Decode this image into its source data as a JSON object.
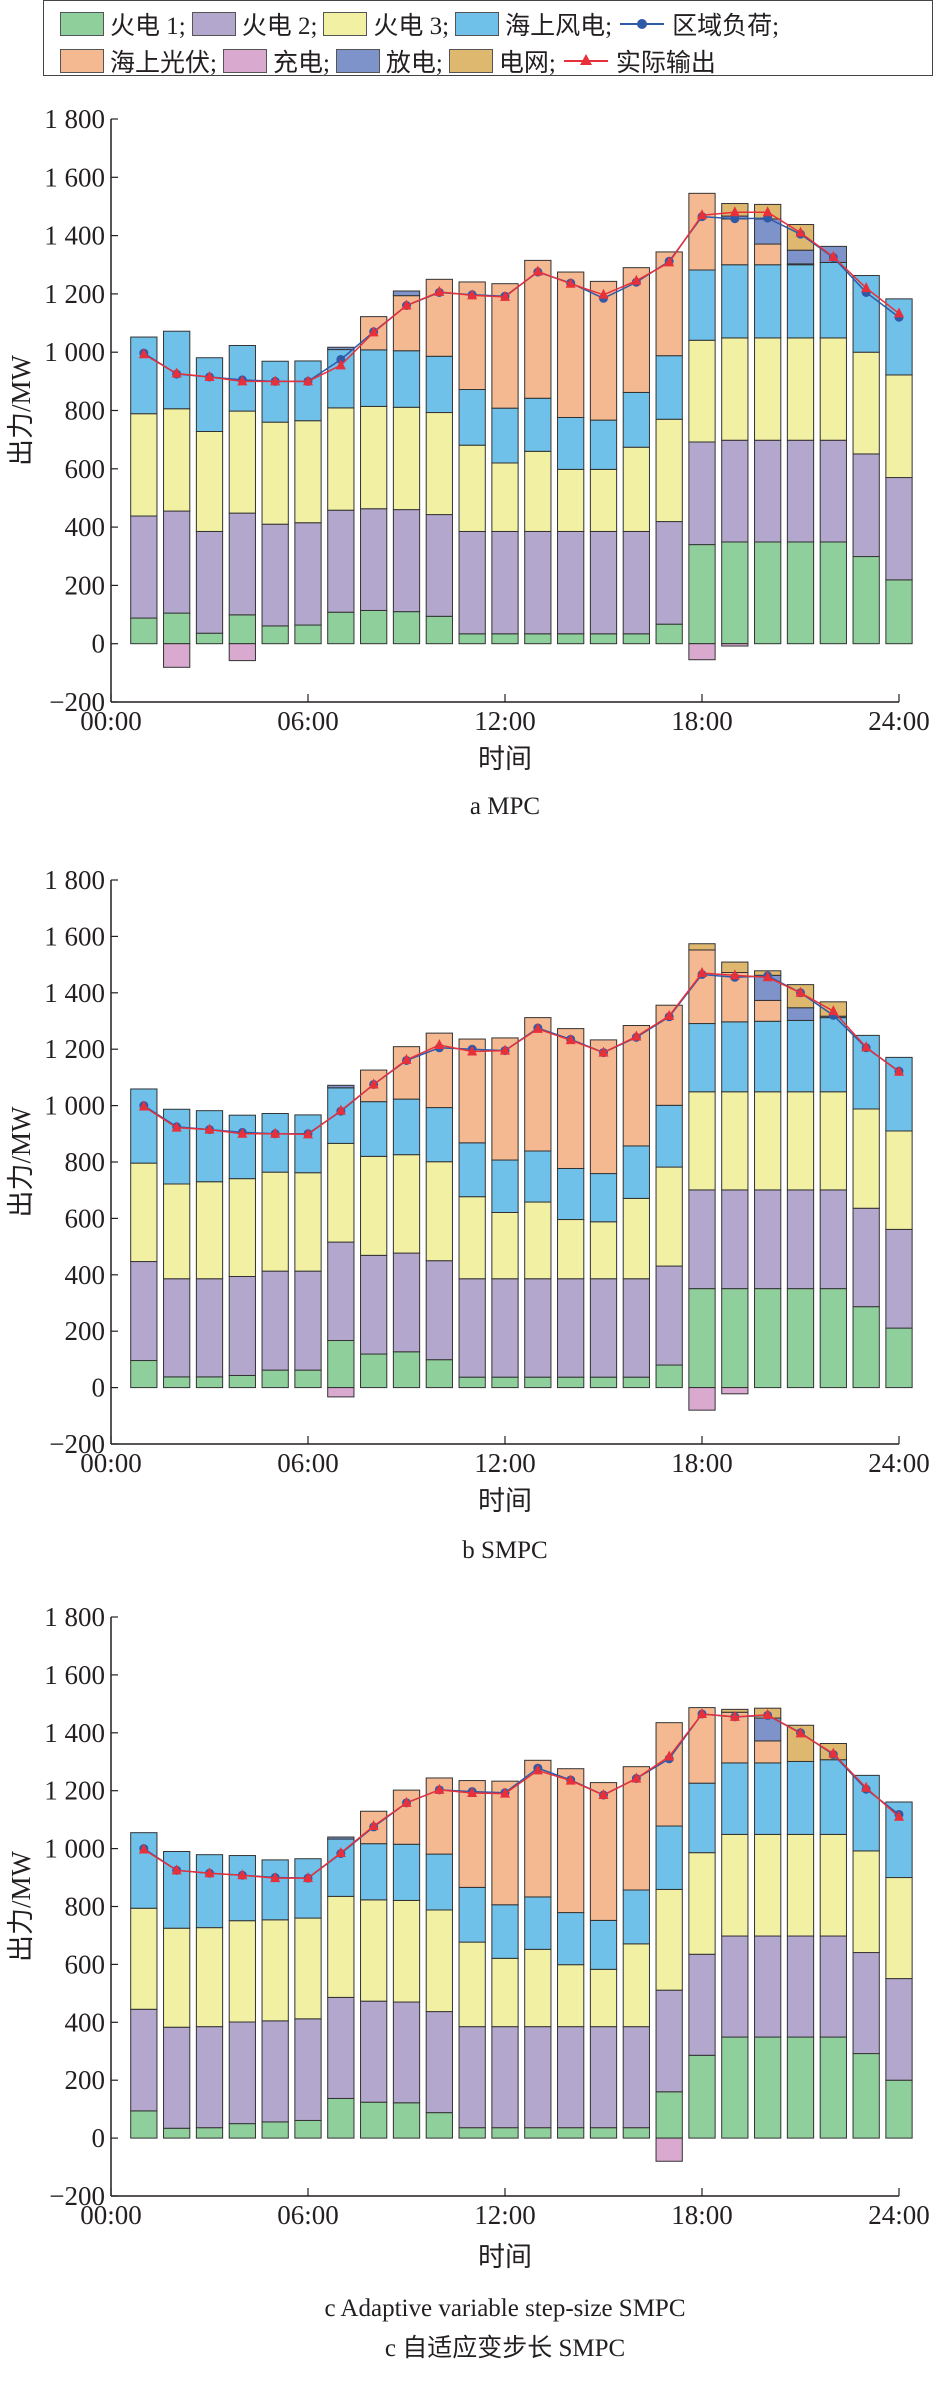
{
  "legend": {
    "items": [
      {
        "label": "火电 1;",
        "color": "#8fcf9b",
        "kind": "box"
      },
      {
        "label": "火电 2;",
        "color": "#b3a7cd",
        "kind": "box"
      },
      {
        "label": "火电 3;",
        "color": "#f2f0a3",
        "kind": "box"
      },
      {
        "label": "海上风电;",
        "color": "#6fc1ea",
        "kind": "box"
      },
      {
        "label": "区域负荷;",
        "color": "#2f5aa8",
        "kind": "line-dot"
      },
      {
        "label": "海上光伏;",
        "color": "#f5b991",
        "kind": "box"
      },
      {
        "label": "充电;",
        "color": "#d9a9d0",
        "kind": "box"
      },
      {
        "label": "放电;",
        "color": "#7f93cb",
        "kind": "box"
      },
      {
        "label": "电网;",
        "color": "#dfb870",
        "kind": "box"
      },
      {
        "label": "实际输出",
        "color": "#e8303a",
        "kind": "line-triangle"
      }
    ]
  },
  "chart_data": [
    {
      "type": "bar",
      "stacked": true,
      "caption": "a  MPC",
      "xlabel": "时间",
      "ylabel": "出力/MW",
      "ylim": [
        -200,
        1800
      ],
      "yticks": [
        -200,
        0,
        200,
        400,
        600,
        800,
        1000,
        1200,
        1400,
        1600,
        1800
      ],
      "ytick_labels": [
        "−200",
        "0",
        "200",
        "400",
        "600",
        "800",
        "1 000",
        "1 200",
        "1 400",
        "1 600",
        "1 800"
      ],
      "xticks": [
        0,
        6,
        12,
        18,
        24
      ],
      "xtick_labels": [
        "00:00",
        "06:00",
        "12:00",
        "18:00",
        "24:00"
      ],
      "hours": [
        1,
        2,
        3,
        4,
        5,
        6,
        7,
        8,
        9,
        10,
        11,
        12,
        13,
        14,
        15,
        16,
        17,
        18,
        19,
        20,
        21,
        22,
        23,
        24
      ],
      "series": [
        {
          "name": "火电 1",
          "values": [
            88,
            105,
            36,
            99,
            61,
            64,
            108,
            114,
            110,
            94,
            34,
            34,
            34,
            34,
            34,
            34,
            67,
            340,
            349,
            349,
            349,
            349,
            299,
            219
          ]
        },
        {
          "name": "火电 2",
          "values": [
            350,
            350,
            349,
            349,
            349,
            351,
            350,
            349,
            350,
            349,
            351,
            351,
            351,
            351,
            351,
            351,
            352,
            352,
            349,
            349,
            349,
            349,
            352,
            351
          ]
        },
        {
          "name": "火电 3",
          "values": [
            351,
            351,
            343,
            350,
            350,
            350,
            351,
            351,
            351,
            350,
            296,
            235,
            275,
            213,
            213,
            289,
            351,
            349,
            351,
            351,
            351,
            351,
            349,
            352
          ]
        },
        {
          "name": "海上风电",
          "values": [
            263,
            266,
            253,
            225,
            209,
            205,
            200,
            194,
            194,
            193,
            191,
            188,
            182,
            178,
            169,
            188,
            218,
            241,
            251,
            251,
            251,
            259,
            263,
            261
          ]
        },
        {
          "name": "海上光伏",
          "values": [
            0,
            0,
            0,
            0,
            0,
            0,
            0,
            114,
            189,
            264,
            369,
            427,
            473,
            499,
            476,
            428,
            356,
            263,
            157,
            71,
            3,
            0,
            0,
            0
          ]
        },
        {
          "name": "放电",
          "values": [
            0,
            0,
            0,
            0,
            0,
            0,
            8,
            0,
            16,
            0,
            0,
            0,
            0,
            0,
            0,
            0,
            0,
            0,
            10,
            86,
            47,
            55,
            0,
            0
          ]
        },
        {
          "name": "电网",
          "values": [
            0,
            0,
            0,
            0,
            0,
            0,
            0,
            0,
            0,
            0,
            0,
            0,
            0,
            0,
            0,
            0,
            0,
            0,
            43,
            50,
            88,
            0,
            0,
            0
          ]
        },
        {
          "name": "充电",
          "values": [
            0,
            -81,
            0,
            -58,
            0,
            0,
            0,
            0,
            0,
            0,
            0,
            0,
            0,
            0,
            0,
            0,
            0,
            -55,
            -8,
            0,
            0,
            0,
            0,
            0
          ]
        }
      ],
      "lines": [
        {
          "name": "区域负荷",
          "values": [
            997,
            925,
            915,
            905,
            900,
            900,
            975,
            1070,
            1160,
            1205,
            1197,
            1192,
            1275,
            1237,
            1185,
            1240,
            1312,
            1465,
            1458,
            1460,
            1405,
            1325,
            1205,
            1120
          ]
        },
        {
          "name": "实际输出",
          "values": [
            993,
            927,
            915,
            900,
            900,
            900,
            955,
            1068,
            1160,
            1207,
            1195,
            1190,
            1277,
            1235,
            1197,
            1245,
            1308,
            1470,
            1480,
            1480,
            1410,
            1327,
            1220,
            1133
          ]
        }
      ]
    },
    {
      "type": "bar",
      "stacked": true,
      "caption": "b  SMPC",
      "xlabel": "时间",
      "ylabel": "出力/MW",
      "ylim": [
        -200,
        1800
      ],
      "yticks": [
        -200,
        0,
        200,
        400,
        600,
        800,
        1000,
        1200,
        1400,
        1600,
        1800
      ],
      "ytick_labels": [
        "−200",
        "0",
        "200",
        "400",
        "600",
        "800",
        "1 000",
        "1 200",
        "1 400",
        "1 600",
        "1 800"
      ],
      "xticks": [
        0,
        6,
        12,
        18,
        24
      ],
      "xtick_labels": [
        "00:00",
        "06:00",
        "12:00",
        "18:00",
        "24:00"
      ],
      "hours": [
        1,
        2,
        3,
        4,
        5,
        6,
        7,
        8,
        9,
        10,
        11,
        12,
        13,
        14,
        15,
        16,
        17,
        18,
        19,
        20,
        21,
        22,
        23,
        24
      ],
      "series": [
        {
          "name": "火电 1",
          "values": [
            96,
            38,
            38,
            43,
            62,
            62,
            167,
            119,
            127,
            99,
            37,
            37,
            37,
            37,
            37,
            37,
            80,
            351,
            351,
            351,
            351,
            351,
            287,
            211
          ]
        },
        {
          "name": "火电 2",
          "values": [
            351,
            348,
            348,
            351,
            351,
            351,
            349,
            350,
            350,
            351,
            349,
            349,
            349,
            349,
            349,
            349,
            351,
            350,
            350,
            350,
            350,
            350,
            349,
            350
          ]
        },
        {
          "name": "火电 3",
          "values": [
            349,
            336,
            344,
            347,
            351,
            349,
            350,
            351,
            349,
            351,
            291,
            235,
            272,
            210,
            202,
            285,
            351,
            348,
            348,
            348,
            348,
            348,
            352,
            349
          ]
        },
        {
          "name": "海上风电",
          "values": [
            263,
            265,
            252,
            225,
            208,
            205,
            197,
            194,
            197,
            192,
            191,
            186,
            181,
            181,
            171,
            186,
            219,
            242,
            248,
            250,
            253,
            263,
            261,
            261
          ]
        },
        {
          "name": "海上光伏",
          "values": [
            0,
            0,
            0,
            0,
            0,
            0,
            0,
            112,
            186,
            264,
            368,
            433,
            473,
            496,
            474,
            427,
            355,
            261,
            175,
            74,
            0,
            0,
            0,
            0
          ]
        },
        {
          "name": "放电",
          "values": [
            0,
            0,
            0,
            0,
            0,
            0,
            9,
            0,
            0,
            0,
            0,
            0,
            0,
            0,
            0,
            0,
            0,
            0,
            0,
            89,
            45,
            5,
            0,
            0
          ]
        },
        {
          "name": "电网",
          "values": [
            0,
            0,
            0,
            0,
            0,
            0,
            0,
            0,
            0,
            0,
            0,
            0,
            0,
            0,
            0,
            0,
            0,
            22,
            37,
            16,
            82,
            51,
            0,
            0
          ]
        },
        {
          "name": "充电",
          "values": [
            0,
            0,
            0,
            0,
            0,
            0,
            -33,
            0,
            0,
            0,
            0,
            0,
            0,
            0,
            0,
            0,
            0,
            -80,
            -22,
            0,
            0,
            0,
            0,
            0
          ]
        }
      ],
      "lines": [
        {
          "name": "区域负荷",
          "values": [
            1000,
            925,
            915,
            905,
            900,
            900,
            980,
            1075,
            1160,
            1205,
            1200,
            1195,
            1275,
            1235,
            1188,
            1242,
            1315,
            1465,
            1455,
            1460,
            1400,
            1320,
            1205,
            1122
          ]
        },
        {
          "name": "实际输出",
          "values": [
            997,
            922,
            915,
            900,
            900,
            898,
            982,
            1075,
            1162,
            1215,
            1192,
            1195,
            1272,
            1232,
            1188,
            1245,
            1318,
            1470,
            1462,
            1455,
            1400,
            1335,
            1207,
            1120
          ]
        }
      ]
    },
    {
      "type": "bar",
      "stacked": true,
      "caption": "c  Adaptive variable step-size SMPC",
      "caption2": "c  自适应变步长 SMPC",
      "xlabel": "时间",
      "ylabel": "出力/MW",
      "ylim": [
        -200,
        1800
      ],
      "yticks": [
        -200,
        0,
        200,
        400,
        600,
        800,
        1000,
        1200,
        1400,
        1600,
        1800
      ],
      "ytick_labels": [
        "−200",
        "0",
        "200",
        "400",
        "600",
        "800",
        "1 000",
        "1 200",
        "1 400",
        "1 600",
        "1 800"
      ],
      "xticks": [
        0,
        6,
        12,
        18,
        24
      ],
      "xtick_labels": [
        "00:00",
        "06:00",
        "12:00",
        "18:00",
        "24:00"
      ],
      "hours": [
        1,
        2,
        3,
        4,
        5,
        6,
        7,
        8,
        9,
        10,
        11,
        12,
        13,
        14,
        15,
        16,
        17,
        18,
        19,
        20,
        21,
        22,
        23,
        24
      ],
      "series": [
        {
          "name": "火电 1",
          "values": [
            94,
            34,
            36,
            50,
            56,
            61,
            137,
            124,
            122,
            88,
            36,
            36,
            36,
            36,
            36,
            36,
            160,
            286,
            349,
            349,
            349,
            349,
            292,
            200
          ]
        },
        {
          "name": "火电 2",
          "values": [
            351,
            349,
            349,
            351,
            349,
            351,
            349,
            349,
            348,
            349,
            349,
            349,
            349,
            349,
            349,
            349,
            351,
            349,
            349,
            349,
            349,
            349,
            349,
            351
          ]
        },
        {
          "name": "火电 3",
          "values": [
            349,
            342,
            342,
            350,
            349,
            348,
            349,
            350,
            351,
            351,
            292,
            236,
            267,
            214,
            198,
            286,
            348,
            351,
            351,
            351,
            351,
            351,
            351,
            349
          ]
        },
        {
          "name": "海上风电",
          "values": [
            261,
            265,
            252,
            225,
            207,
            205,
            198,
            194,
            194,
            193,
            189,
            185,
            181,
            180,
            169,
            186,
            219,
            240,
            247,
            247,
            252,
            258,
            261,
            261
          ]
        },
        {
          "name": "海上光伏",
          "values": [
            0,
            0,
            0,
            0,
            0,
            0,
            0,
            112,
            187,
            263,
            369,
            427,
            472,
            497,
            476,
            426,
            357,
            261,
            175,
            76,
            0,
            0,
            0,
            0
          ]
        },
        {
          "name": "放电",
          "values": [
            0,
            0,
            0,
            0,
            0,
            0,
            7,
            0,
            0,
            0,
            0,
            0,
            0,
            0,
            0,
            0,
            0,
            0,
            0,
            79,
            0,
            0,
            0,
            0
          ]
        },
        {
          "name": "电网",
          "values": [
            0,
            0,
            0,
            0,
            0,
            0,
            0,
            0,
            0,
            0,
            0,
            0,
            0,
            0,
            0,
            0,
            0,
            0,
            10,
            34,
            125,
            56,
            0,
            0
          ]
        },
        {
          "name": "充电",
          "values": [
            0,
            0,
            0,
            0,
            0,
            0,
            0,
            0,
            0,
            0,
            0,
            0,
            0,
            0,
            0,
            0,
            -80,
            0,
            0,
            0,
            0,
            0,
            0,
            0
          ]
        }
      ],
      "lines": [
        {
          "name": "区域负荷",
          "values": [
            1000,
            925,
            915,
            908,
            900,
            898,
            983,
            1075,
            1158,
            1203,
            1197,
            1193,
            1278,
            1237,
            1185,
            1242,
            1310,
            1465,
            1455,
            1460,
            1400,
            1325,
            1205,
            1118
          ]
        },
        {
          "name": "实际输出",
          "values": [
            997,
            925,
            915,
            908,
            898,
            898,
            985,
            1078,
            1158,
            1203,
            1192,
            1190,
            1270,
            1235,
            1185,
            1242,
            1318,
            1465,
            1455,
            1462,
            1398,
            1328,
            1210,
            1110
          ]
        }
      ]
    }
  ],
  "colors": {
    "火电 1": "#8fcf9b",
    "火电 2": "#b3a7cd",
    "火电 3": "#f2f0a3",
    "海上风电": "#6fc1ea",
    "海上光伏": "#f5b991",
    "充电": "#d9a9d0",
    "放电": "#7f93cb",
    "电网": "#dfb870",
    "区域负荷": "#2f5aa8",
    "实际输出": "#e8303a"
  }
}
